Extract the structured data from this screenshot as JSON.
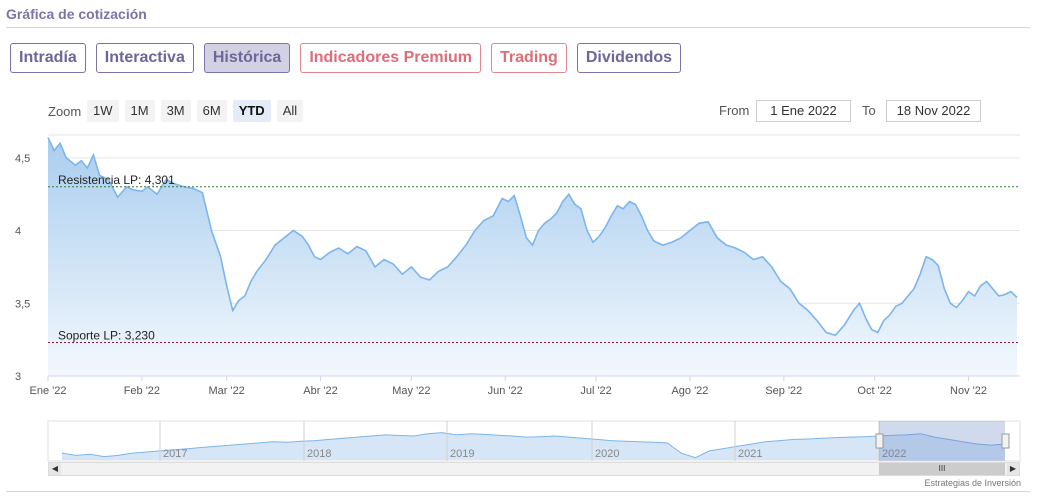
{
  "section_title": "Gráfica de cotización",
  "tabs": [
    {
      "label": "Intradía",
      "active": false,
      "premium": false
    },
    {
      "label": "Interactiva",
      "active": false,
      "premium": false
    },
    {
      "label": "Histórica",
      "active": true,
      "premium": false
    },
    {
      "label": "Indicadores Premium",
      "active": false,
      "premium": true
    },
    {
      "label": "Trading",
      "active": false,
      "premium": true
    },
    {
      "label": "Dividendos",
      "active": false,
      "premium": false
    }
  ],
  "zoom": {
    "label": "Zoom",
    "buttons": [
      {
        "label": "1W",
        "active": false
      },
      {
        "label": "1M",
        "active": false
      },
      {
        "label": "3M",
        "active": false
      },
      {
        "label": "6M",
        "active": false
      },
      {
        "label": "YTD",
        "active": true
      },
      {
        "label": "All",
        "active": false
      }
    ]
  },
  "range": {
    "from_label": "From",
    "from_value": "1 Ene 2022",
    "to_label": "To",
    "to_value": "18 Nov 2022"
  },
  "colors": {
    "line": "#7cb5ec",
    "area_top": "#a9cdef",
    "area_bottom": "#f3f8fd",
    "resistance": "#2f7d2f",
    "support": "#8b1a3a",
    "grid": "#e6e6e6"
  },
  "chart_data": {
    "type": "area",
    "ylim": [
      3.0,
      4.65
    ],
    "yticks": [
      "3",
      "3,5",
      "4",
      "4,5"
    ],
    "ytick_values": [
      3.0,
      3.5,
      4.0,
      4.5
    ],
    "xticks": [
      "Ene '22",
      "Feb '22",
      "Mar '22",
      "Abr '22",
      "May '22",
      "Jun '22",
      "Jul '22",
      "Ago '22",
      "Sep '22",
      "Oct '22",
      "Nov '22"
    ],
    "xtick_days": [
      0,
      31,
      59,
      90,
      120,
      151,
      181,
      212,
      243,
      273,
      304
    ],
    "x_days_total": 321,
    "lines": [
      {
        "label": "Resistencia LP: 4,301",
        "value": 4.301,
        "kind": "resistance"
      },
      {
        "label": "Soporte LP: 3,230",
        "value": 3.23,
        "kind": "support"
      }
    ],
    "series": [
      {
        "x_day": [
          0,
          2,
          4,
          6,
          9,
          11,
          13,
          15,
          17,
          20,
          23,
          26,
          28,
          31,
          33,
          36,
          39,
          42,
          45,
          48,
          51,
          54,
          57,
          59,
          61,
          63,
          65,
          67,
          69,
          72,
          75,
          78,
          81,
          84,
          86,
          88,
          90,
          93,
          96,
          99,
          102,
          105,
          108,
          111,
          114,
          117,
          120,
          123,
          126,
          129,
          132,
          135,
          138,
          141,
          144,
          147,
          150,
          152,
          154,
          156,
          158,
          160,
          162,
          164,
          166,
          168,
          170,
          172,
          174,
          176,
          178,
          180,
          182,
          184,
          186,
          188,
          190,
          192,
          194,
          196,
          198,
          200,
          203,
          206,
          209,
          212,
          215,
          218,
          221,
          224,
          227,
          230,
          233,
          236,
          239,
          242,
          245,
          248,
          251,
          254,
          257,
          260,
          263,
          266,
          268,
          270,
          272,
          274,
          276,
          278,
          280,
          282,
          284,
          286,
          288,
          290,
          292,
          294,
          296,
          298,
          300,
          302,
          304,
          306,
          308,
          310,
          312,
          314,
          316,
          318,
          320
        ],
        "values": [
          4.64,
          4.55,
          4.6,
          4.5,
          4.45,
          4.48,
          4.43,
          4.52,
          4.38,
          4.35,
          4.23,
          4.3,
          4.28,
          4.27,
          4.3,
          4.25,
          4.35,
          4.32,
          4.3,
          4.29,
          4.26,
          4.0,
          3.82,
          3.62,
          3.45,
          3.52,
          3.55,
          3.65,
          3.72,
          3.8,
          3.9,
          3.95,
          4.0,
          3.96,
          3.9,
          3.82,
          3.8,
          3.85,
          3.88,
          3.84,
          3.89,
          3.86,
          3.75,
          3.8,
          3.77,
          3.7,
          3.75,
          3.68,
          3.66,
          3.72,
          3.75,
          3.82,
          3.9,
          4.0,
          4.07,
          4.1,
          4.22,
          4.2,
          4.24,
          4.1,
          3.95,
          3.9,
          4.0,
          4.05,
          4.08,
          4.12,
          4.2,
          4.25,
          4.18,
          4.15,
          4.0,
          3.92,
          3.96,
          4.02,
          4.1,
          4.17,
          4.15,
          4.2,
          4.18,
          4.1,
          4.0,
          3.93,
          3.9,
          3.92,
          3.95,
          4.0,
          4.05,
          4.06,
          3.95,
          3.9,
          3.88,
          3.85,
          3.8,
          3.82,
          3.75,
          3.65,
          3.6,
          3.5,
          3.45,
          3.38,
          3.3,
          3.28,
          3.35,
          3.45,
          3.5,
          3.4,
          3.32,
          3.3,
          3.38,
          3.42,
          3.48,
          3.5,
          3.55,
          3.6,
          3.7,
          3.82,
          3.8,
          3.76,
          3.6,
          3.5,
          3.47,
          3.52,
          3.58,
          3.55,
          3.62,
          3.65,
          3.6,
          3.55,
          3.56,
          3.58,
          3.54
        ]
      }
    ]
  },
  "navigator": {
    "year_labels": [
      "2017",
      "2018",
      "2019",
      "2020",
      "2021",
      "2022"
    ],
    "values": [
      3.2,
      3.1,
      3.15,
      3.05,
      3.1,
      3.2,
      3.25,
      3.3,
      3.35,
      3.4,
      3.45,
      3.5,
      3.55,
      3.6,
      3.65,
      3.7,
      3.68,
      3.72,
      3.75,
      3.8,
      3.85,
      3.9,
      3.95,
      4.0,
      3.97,
      3.95,
      4.05,
      4.1,
      4.0,
      4.05,
      4.02,
      3.98,
      3.95,
      3.9,
      3.92,
      3.95,
      3.9,
      3.85,
      3.8,
      3.75,
      3.72,
      3.7,
      3.68,
      3.65,
      3.2,
      3.0,
      3.3,
      3.4,
      3.5,
      3.6,
      3.7,
      3.75,
      3.8,
      3.82,
      3.85,
      3.88,
      3.9,
      3.92,
      3.95,
      3.98,
      4.0,
      4.05,
      3.9,
      3.8,
      3.7,
      3.6,
      3.55,
      3.6
    ]
  },
  "credit": "Estrategias de Inversión"
}
